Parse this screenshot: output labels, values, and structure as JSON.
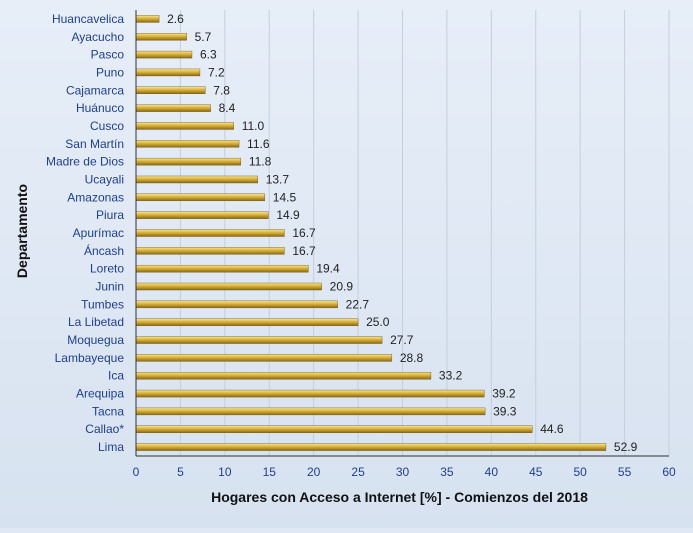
{
  "chart_data": {
    "type": "bar",
    "orientation": "horizontal",
    "xlabel": "Hogares con Acceso a Internet [%] - Comienzos del 2018",
    "ylabel": "Departamento",
    "categories": [
      "Huancavelica",
      "Ayacucho",
      "Pasco",
      "Puno",
      "Cajamarca",
      "Huánuco",
      "Cusco",
      "San Martín",
      "Madre de Dios",
      "Ucayali",
      "Amazonas",
      "Piura",
      "Apurímac",
      "Áncash",
      "Loreto",
      "Junin",
      "Tumbes",
      "La Libetad",
      "Moquegua",
      "Lambayeque",
      "Ica",
      "Arequipa",
      "Tacna",
      "Callao*",
      "Lima"
    ],
    "values": [
      2.6,
      5.7,
      6.3,
      7.2,
      7.8,
      8.4,
      11.0,
      11.6,
      11.8,
      13.7,
      14.5,
      14.9,
      16.7,
      16.7,
      19.4,
      20.9,
      22.7,
      25.0,
      27.7,
      28.8,
      33.2,
      39.2,
      39.3,
      44.6,
      52.9
    ],
    "value_labels": [
      "2.6",
      "5.7",
      "6.3",
      "7.2",
      "7.8",
      "8.4",
      "11.0",
      "11.6",
      "11.8",
      "13.7",
      "14.5",
      "14.9",
      "16.7",
      "16.7",
      "19.4",
      "20.9",
      "22.7",
      "25.0",
      "27.7",
      "28.8",
      "33.2",
      "39.2",
      "39.3",
      "44.6",
      "52.9"
    ],
    "xlim": [
      0,
      60
    ],
    "xticks": [
      "0",
      "5",
      "10",
      "15",
      "20",
      "25",
      "30",
      "35",
      "40",
      "45",
      "50",
      "55",
      "60"
    ],
    "grid": "vertical",
    "legend": "none",
    "colors": {
      "bar": "#c9a227",
      "bar_highlight": "#f6df7a",
      "bar_shadow": "#7d5e10",
      "axis_text": "#1f3f8f",
      "background": "#dfe8f4"
    }
  }
}
